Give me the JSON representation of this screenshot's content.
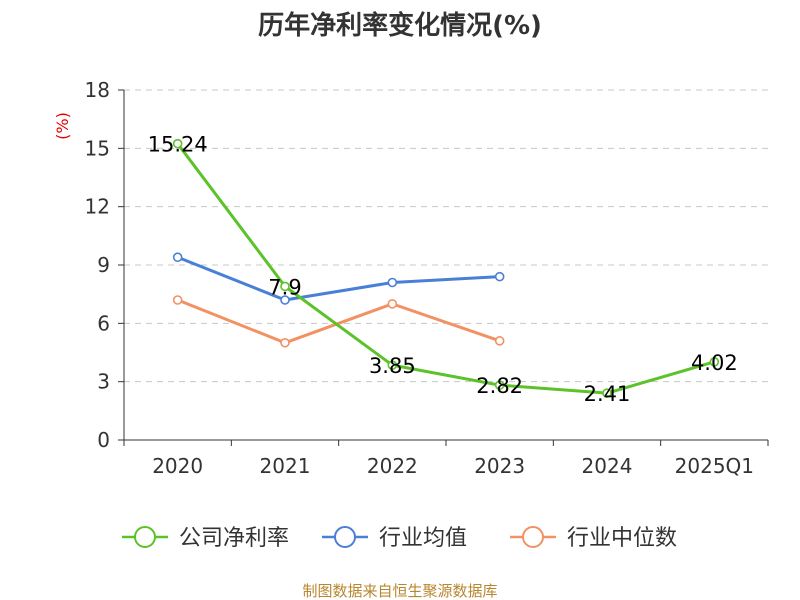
{
  "chart_data": {
    "type": "line",
    "title": "历年净利率变化情况(%)",
    "y_unit": "(%)",
    "categories": [
      "2020",
      "2021",
      "2022",
      "2023",
      "2024",
      "2025Q1"
    ],
    "ylim": [
      0,
      18
    ],
    "yticks": [
      0,
      3,
      6,
      9,
      12,
      15,
      18
    ],
    "grid": true,
    "legend_position": "bottom",
    "series": [
      {
        "name": "公司净利率",
        "color": "#5cc22a",
        "values": [
          15.24,
          7.9,
          3.85,
          2.82,
          2.41,
          4.02
        ],
        "labels": [
          "15.24",
          "7.9",
          "3.85",
          "2.82",
          "2.41",
          "4.02"
        ]
      },
      {
        "name": "行业均值",
        "color": "#4a7fd8",
        "values": [
          9.4,
          7.2,
          8.1,
          8.4,
          null,
          null
        ]
      },
      {
        "name": "行业中位数",
        "color": "#f29163",
        "values": [
          7.2,
          5.0,
          7.0,
          5.1,
          null,
          null
        ]
      }
    ]
  },
  "source": "制图数据来自恒生聚源数据库"
}
